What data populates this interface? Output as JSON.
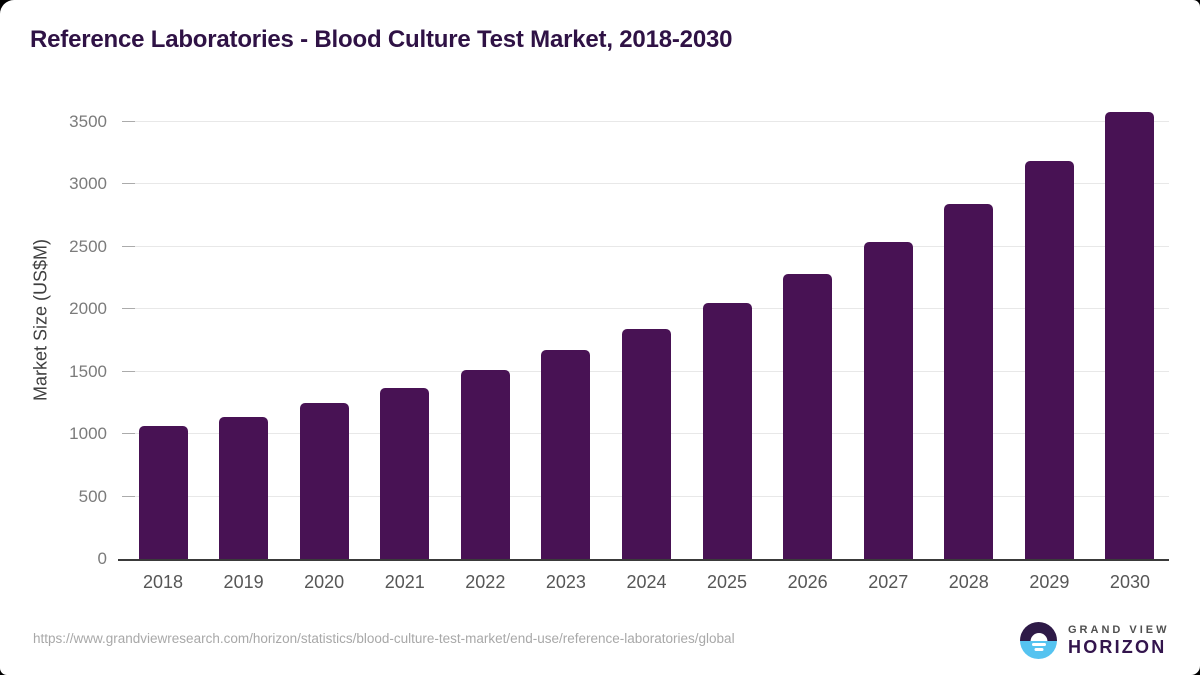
{
  "chart_data": {
    "type": "bar",
    "title": "Reference Laboratories - Blood Culture Test Market, 2018-2030",
    "categories": [
      "2018",
      "2019",
      "2020",
      "2021",
      "2022",
      "2023",
      "2024",
      "2025",
      "2026",
      "2027",
      "2028",
      "2029",
      "2030"
    ],
    "values": [
      1065,
      1140,
      1250,
      1370,
      1510,
      1670,
      1845,
      2050,
      2280,
      2535,
      2845,
      3190,
      3580
    ],
    "series_name": "Market Size",
    "xlabel": "",
    "ylabel": "Market Size (US$M)",
    "yticks": [
      0,
      500,
      1000,
      1500,
      2000,
      2500,
      3000,
      3500
    ],
    "ylim": [
      0,
      3675
    ],
    "grid": "horizontal",
    "legend": "none",
    "bar_color": "#481254"
  },
  "footer": {
    "source_url": "https://www.grandviewresearch.com/horizon/statistics/blood-culture-test-market/end-use/reference-laboratories/global"
  },
  "logo": {
    "line1": "GRAND VIEW",
    "line2": "HORIZON",
    "icon": "horizon-sun-icon",
    "icon_top_color": "#2e1a47",
    "icon_bottom_color": "#55c3f0"
  },
  "colors": {
    "bar": "#481254",
    "title": "#2f1245",
    "y_label": "#7b7b7b",
    "x_label": "#565656",
    "gridline": "#e8e8e8",
    "axis_line": "#3a3a3a"
  }
}
